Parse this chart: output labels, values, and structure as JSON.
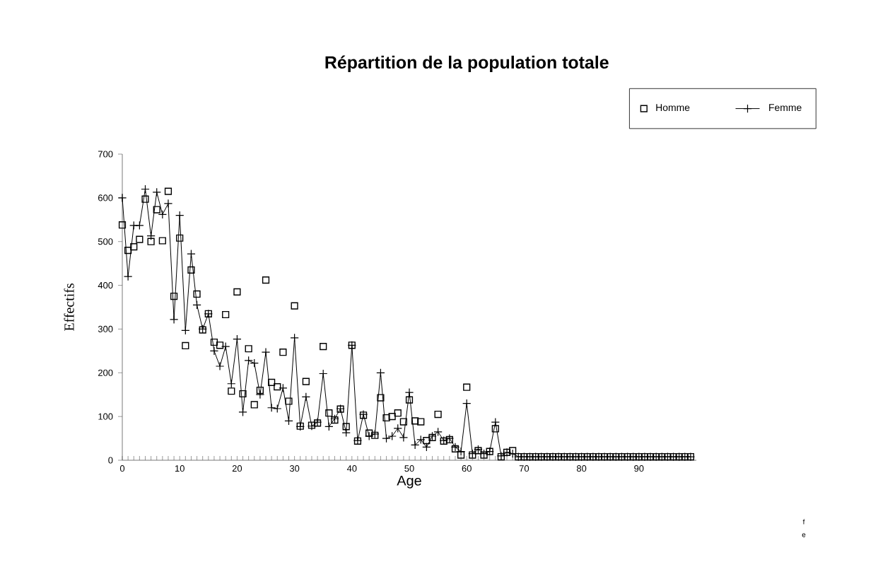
{
  "chart_data": {
    "type": "line",
    "title": "Répartition de la population totale",
    "xlabel": "Age",
    "ylabel": "Effectifs",
    "x": [
      0,
      1,
      2,
      3,
      4,
      5,
      6,
      7,
      8,
      9,
      10,
      11,
      12,
      13,
      14,
      15,
      16,
      17,
      18,
      19,
      20,
      21,
      22,
      23,
      24,
      25,
      26,
      27,
      28,
      29,
      30,
      31,
      32,
      33,
      34,
      35,
      36,
      37,
      38,
      39,
      40,
      41,
      42,
      43,
      44,
      45,
      46,
      47,
      48,
      49,
      50,
      51,
      52,
      53,
      54,
      55,
      56,
      57,
      58,
      59,
      60,
      61,
      62,
      63,
      64,
      65,
      66,
      67,
      68,
      69,
      70,
      71,
      72,
      73,
      74,
      75,
      76,
      77,
      78,
      79,
      80,
      81,
      82,
      83,
      84,
      85,
      86,
      87,
      88,
      89,
      90,
      91,
      92,
      93,
      94,
      95,
      96,
      97,
      98,
      99
    ],
    "series": [
      {
        "name": "Homme",
        "type": "scatter",
        "marker": "square",
        "color": "#000000",
        "values": [
          538,
          480,
          488,
          505,
          597,
          500,
          573,
          502,
          615,
          375,
          508,
          262,
          435,
          380,
          298,
          335,
          270,
          263,
          333,
          158,
          385,
          152,
          255,
          127,
          160,
          412,
          178,
          168,
          247,
          135,
          353,
          78,
          180,
          80,
          85,
          260,
          108,
          92,
          117,
          77,
          263,
          44,
          103,
          62,
          57,
          143,
          97,
          100,
          108,
          88,
          138,
          90,
          88,
          45,
          52,
          105,
          44,
          47,
          26,
          12,
          167,
          12,
          22,
          12,
          20,
          72,
          8,
          18,
          22,
          8,
          8,
          8,
          8,
          8,
          8,
          8,
          8,
          8,
          8,
          8,
          8,
          8,
          8,
          8,
          8,
          8,
          8,
          8,
          8,
          8,
          8,
          8,
          8,
          8,
          8,
          8,
          8,
          8,
          8,
          8
        ]
      },
      {
        "name": "Femme",
        "marker": "cross",
        "line_style": "solid",
        "color": "#000000",
        "values": [
          600,
          420,
          537,
          537,
          620,
          513,
          613,
          562,
          587,
          322,
          560,
          297,
          472,
          355,
          300,
          335,
          250,
          215,
          260,
          175,
          277,
          110,
          228,
          222,
          150,
          247,
          120,
          118,
          165,
          90,
          280,
          77,
          145,
          78,
          87,
          198,
          77,
          95,
          118,
          63,
          263,
          45,
          105,
          55,
          60,
          200,
          50,
          55,
          73,
          52,
          155,
          35,
          47,
          30,
          55,
          65,
          45,
          50,
          30,
          20,
          130,
          15,
          25,
          15,
          20,
          87,
          10,
          18,
          15,
          8,
          8,
          8,
          8,
          8,
          8,
          8,
          8,
          8,
          8,
          8,
          8,
          8,
          8,
          8,
          8,
          8,
          8,
          8,
          8,
          8,
          8,
          8,
          8,
          8,
          8,
          8,
          8,
          8,
          8,
          8
        ]
      }
    ],
    "xlim": [
      0,
      100
    ],
    "ylim": [
      0,
      700
    ],
    "xticks": [
      0,
      10,
      20,
      30,
      40,
      50,
      60,
      70,
      80,
      90
    ],
    "yticks": [
      0,
      100,
      200,
      300,
      400,
      500,
      600,
      700
    ],
    "grid": false,
    "legend": "top right",
    "annotations": [
      "f",
      "e"
    ]
  }
}
